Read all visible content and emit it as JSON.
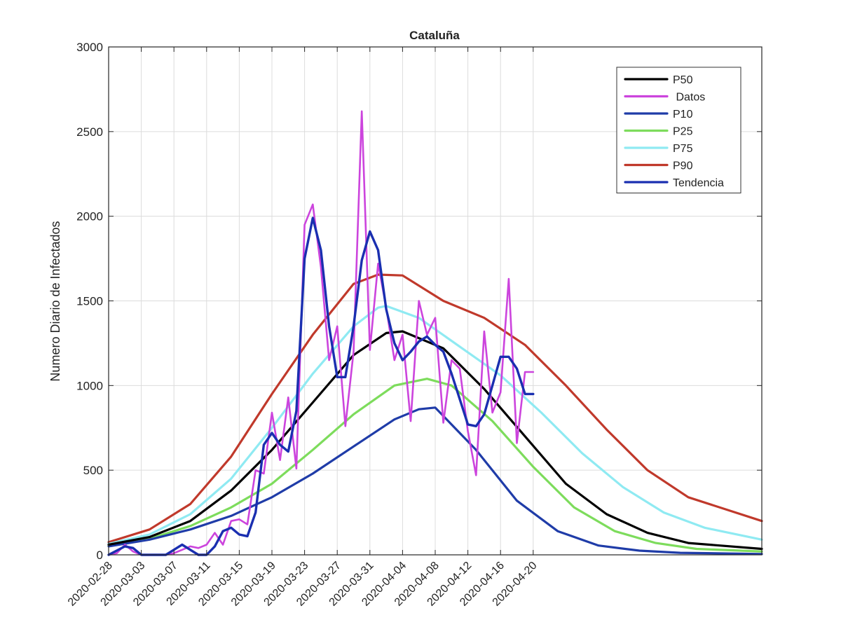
{
  "chart_data": {
    "type": "line",
    "title": "Cataluña",
    "xlabel": "",
    "ylabel": "Numero Diario de Infectados",
    "ylim": [
      0,
      3000
    ],
    "xlim": [
      "2020-02-28",
      "2020-05-18"
    ],
    "x_tick_labels": [
      "2020-02-28",
      "2020-03-03",
      "2020-03-07",
      "2020-03-11",
      "2020-03-15",
      "2020-03-19",
      "2020-03-23",
      "2020-03-27",
      "2020-03-31",
      "2020-04-04",
      "2020-04-08",
      "2020-04-12",
      "2020-04-16",
      "2020-04-20"
    ],
    "y_ticks": [
      0,
      500,
      1000,
      1500,
      2000,
      2500,
      3000
    ],
    "grid": true,
    "legend_position": "top-right",
    "series": [
      {
        "name": "P50",
        "color": "#000000",
        "x": [
          "2020-02-28",
          "2020-03-04",
          "2020-03-09",
          "2020-03-14",
          "2020-03-19",
          "2020-03-24",
          "2020-03-29",
          "2020-04-02",
          "2020-04-04",
          "2020-04-09",
          "2020-04-14",
          "2020-04-19",
          "2020-04-24",
          "2020-04-29",
          "2020-05-04",
          "2020-05-09",
          "2020-05-18"
        ],
        "y": [
          60,
          105,
          200,
          380,
          620,
          900,
          1180,
          1310,
          1320,
          1220,
          980,
          700,
          420,
          240,
          130,
          70,
          35
        ]
      },
      {
        "name": "Datos",
        "color": "#cc44dd",
        "x": [
          "2020-02-28",
          "2020-02-29",
          "2020-03-01",
          "2020-03-02",
          "2020-03-03",
          "2020-03-04",
          "2020-03-05",
          "2020-03-06",
          "2020-03-07",
          "2020-03-08",
          "2020-03-09",
          "2020-03-10",
          "2020-03-11",
          "2020-03-12",
          "2020-03-13",
          "2020-03-14",
          "2020-03-15",
          "2020-03-16",
          "2020-03-17",
          "2020-03-18",
          "2020-03-19",
          "2020-03-20",
          "2020-03-21",
          "2020-03-22",
          "2020-03-23",
          "2020-03-24",
          "2020-03-25",
          "2020-03-26",
          "2020-03-27",
          "2020-03-28",
          "2020-03-29",
          "2020-03-30",
          "2020-03-31",
          "2020-04-01",
          "2020-04-02",
          "2020-04-03",
          "2020-04-04",
          "2020-04-05",
          "2020-04-06",
          "2020-04-07",
          "2020-04-08",
          "2020-04-09",
          "2020-04-10",
          "2020-04-11",
          "2020-04-12",
          "2020-04-13",
          "2020-04-14",
          "2020-04-15",
          "2020-04-16",
          "2020-04-17",
          "2020-04-18",
          "2020-04-19",
          "2020-04-20"
        ],
        "y": [
          0,
          10,
          60,
          20,
          0,
          0,
          0,
          0,
          10,
          30,
          50,
          40,
          60,
          130,
          60,
          200,
          210,
          180,
          500,
          480,
          840,
          560,
          930,
          510,
          1950,
          2070,
          1700,
          1150,
          1350,
          760,
          1200,
          2620,
          1210,
          1720,
          1460,
          1150,
          1300,
          790,
          1500,
          1300,
          1400,
          780,
          1150,
          1100,
          730,
          470,
          1320,
          840,
          960,
          1630,
          660,
          1080,
          1080
        ]
      },
      {
        "name": "P10",
        "color": "#1f3ca8",
        "x": [
          "2020-02-28",
          "2020-03-04",
          "2020-03-09",
          "2020-03-14",
          "2020-03-19",
          "2020-03-24",
          "2020-03-29",
          "2020-04-03",
          "2020-04-06",
          "2020-04-08",
          "2020-04-13",
          "2020-04-18",
          "2020-04-23",
          "2020-04-28",
          "2020-05-03",
          "2020-05-08",
          "2020-05-18"
        ],
        "y": [
          50,
          90,
          150,
          230,
          340,
          480,
          640,
          800,
          860,
          870,
          620,
          320,
          140,
          55,
          25,
          12,
          5
        ]
      },
      {
        "name": "P25",
        "color": "#7ddc5c",
        "x": [
          "2020-02-28",
          "2020-03-04",
          "2020-03-09",
          "2020-03-14",
          "2020-03-19",
          "2020-03-24",
          "2020-03-29",
          "2020-04-03",
          "2020-04-07",
          "2020-04-10",
          "2020-04-15",
          "2020-04-20",
          "2020-04-25",
          "2020-04-30",
          "2020-05-05",
          "2020-05-10",
          "2020-05-18"
        ],
        "y": [
          55,
          95,
          170,
          280,
          420,
          620,
          830,
          1000,
          1040,
          1000,
          790,
          520,
          280,
          140,
          70,
          35,
          20
        ]
      },
      {
        "name": "P75",
        "color": "#8feaf2",
        "x": [
          "2020-02-28",
          "2020-03-04",
          "2020-03-09",
          "2020-03-14",
          "2020-03-19",
          "2020-03-24",
          "2020-03-29",
          "2020-04-01",
          "2020-04-02",
          "2020-04-06",
          "2020-04-11",
          "2020-04-16",
          "2020-04-21",
          "2020-04-26",
          "2020-05-01",
          "2020-05-06",
          "2020-05-11",
          "2020-05-18"
        ],
        "y": [
          65,
          120,
          240,
          450,
          750,
          1070,
          1350,
          1460,
          1470,
          1400,
          1230,
          1060,
          840,
          600,
          400,
          250,
          160,
          90
        ]
      },
      {
        "name": "P90",
        "color": "#c0392b",
        "x": [
          "2020-02-28",
          "2020-03-04",
          "2020-03-09",
          "2020-03-14",
          "2020-03-19",
          "2020-03-24",
          "2020-03-29",
          "2020-04-01",
          "2020-04-04",
          "2020-04-09",
          "2020-04-14",
          "2020-04-19",
          "2020-04-24",
          "2020-04-29",
          "2020-05-04",
          "2020-05-09",
          "2020-05-18"
        ],
        "y": [
          75,
          150,
          300,
          580,
          950,
          1300,
          1600,
          1655,
          1650,
          1500,
          1400,
          1240,
          1000,
          740,
          500,
          340,
          200
        ]
      },
      {
        "name": "Tendencia",
        "color": "#1a2fb0",
        "x": [
          "2020-02-28",
          "2020-03-01",
          "2020-03-02",
          "2020-03-03",
          "2020-03-04",
          "2020-03-05",
          "2020-03-06",
          "2020-03-07",
          "2020-03-08",
          "2020-03-09",
          "2020-03-10",
          "2020-03-11",
          "2020-03-12",
          "2020-03-13",
          "2020-03-14",
          "2020-03-15",
          "2020-03-16",
          "2020-03-17",
          "2020-03-18",
          "2020-03-19",
          "2020-03-20",
          "2020-03-21",
          "2020-03-22",
          "2020-03-23",
          "2020-03-24",
          "2020-03-25",
          "2020-03-26",
          "2020-03-27",
          "2020-03-28",
          "2020-03-29",
          "2020-03-30",
          "2020-03-31",
          "2020-04-01",
          "2020-04-02",
          "2020-04-03",
          "2020-04-04",
          "2020-04-05",
          "2020-04-06",
          "2020-04-07",
          "2020-04-08",
          "2020-04-09",
          "2020-04-10",
          "2020-04-11",
          "2020-04-12",
          "2020-04-13",
          "2020-04-14",
          "2020-04-15",
          "2020-04-16",
          "2020-04-17",
          "2020-04-18",
          "2020-04-19",
          "2020-04-20"
        ],
        "y": [
          0,
          50,
          40,
          0,
          0,
          0,
          0,
          30,
          60,
          30,
          0,
          0,
          50,
          140,
          160,
          120,
          110,
          250,
          650,
          720,
          650,
          610,
          850,
          1750,
          1990,
          1800,
          1350,
          1050,
          1050,
          1350,
          1740,
          1910,
          1800,
          1450,
          1250,
          1150,
          1200,
          1260,
          1290,
          1240,
          1200,
          1070,
          920,
          770,
          760,
          830,
          1000,
          1170,
          1170,
          1100,
          950,
          950
        ]
      }
    ]
  }
}
